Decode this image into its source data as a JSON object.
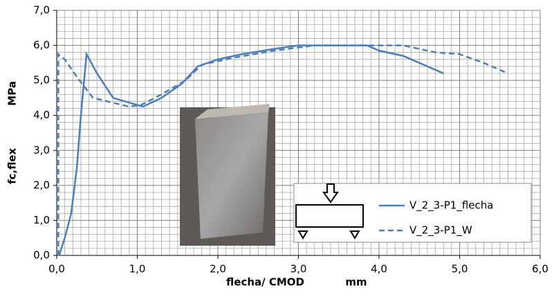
{
  "chart_data": {
    "type": "line",
    "x_label": "flecha/ CMOD",
    "x_unit": "mm",
    "y_label": "fc,flex",
    "y_unit": "MPa",
    "xlim": [
      0,
      6
    ],
    "ylim": [
      0,
      7
    ],
    "xticks": [
      {
        "value": 0,
        "label": "0,0"
      },
      {
        "value": 1,
        "label": "1,0"
      },
      {
        "value": 2,
        "label": "2,0"
      },
      {
        "value": 3,
        "label": "3,0"
      },
      {
        "value": 4,
        "label": "4,0"
      },
      {
        "value": 5,
        "label": "5,0"
      },
      {
        "value": 6,
        "label": "6,0"
      }
    ],
    "yticks": [
      {
        "value": 0,
        "label": "0,0"
      },
      {
        "value": 1,
        "label": "1,0"
      },
      {
        "value": 2,
        "label": "2,0"
      },
      {
        "value": 3,
        "label": "3,0"
      },
      {
        "value": 4,
        "label": "4,0"
      },
      {
        "value": 5,
        "label": "5,0"
      },
      {
        "value": 6,
        "label": "6,0"
      },
      {
        "value": 7,
        "label": "7,0"
      }
    ],
    "grid": true,
    "series": [
      {
        "name": "V_2_3-P1_flecha",
        "color": "#4a7ebb",
        "dash": false,
        "x": [
          0.03,
          0.1,
          0.18,
          0.25,
          0.3,
          0.37,
          0.5,
          0.7,
          1.07,
          1.3,
          1.55,
          1.75,
          2.0,
          2.3,
          2.7,
          3.0,
          3.3,
          3.85,
          4.0,
          4.3,
          4.5,
          4.8
        ],
        "values": [
          0,
          0.5,
          1.2,
          2.5,
          4.0,
          5.75,
          5.2,
          4.5,
          4.25,
          4.5,
          4.9,
          5.4,
          5.6,
          5.75,
          5.9,
          6.0,
          6.0,
          6.0,
          5.85,
          5.7,
          5.5,
          5.2
        ]
      },
      {
        "name": "V_2_3-P1_W",
        "color": "#4a7ebb",
        "dash": true,
        "x": [
          0.02,
          0.02,
          0.1,
          0.25,
          0.45,
          0.9,
          1.05,
          1.3,
          1.6,
          1.8,
          2.2,
          2.7,
          3.2,
          3.5,
          3.9,
          4.3,
          4.7,
          5.0,
          5.3,
          5.6
        ],
        "values": [
          0,
          5.75,
          5.6,
          5.1,
          4.5,
          4.25,
          4.3,
          4.6,
          5.0,
          5.45,
          5.65,
          5.85,
          6.0,
          6.0,
          6.0,
          6.0,
          5.8,
          5.75,
          5.5,
          5.2
        ]
      }
    ]
  }
}
